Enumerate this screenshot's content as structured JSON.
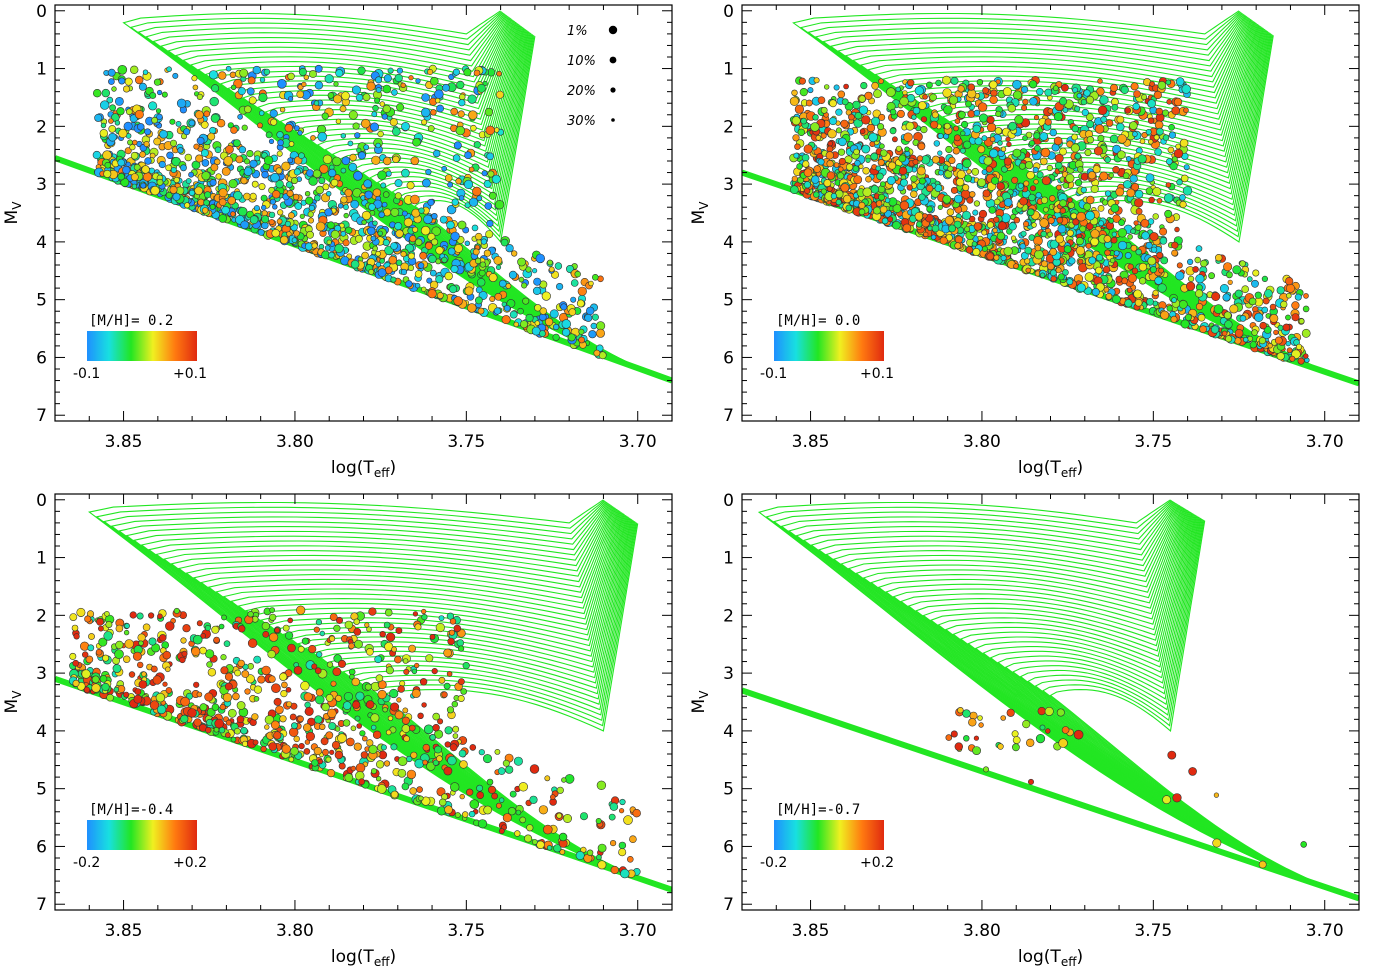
{
  "colors": {
    "isochrone": "#22e622",
    "frame": "#000000",
    "colormap": [
      "#1f8fff",
      "#18e0e0",
      "#22e622",
      "#f0f020",
      "#ff7a10",
      "#e02a10"
    ]
  },
  "chart_data": [
    {
      "type": "scatter",
      "title": "",
      "xlabel": "log(T",
      "xlabel_sub": "eff",
      "xlabel_close": ")",
      "ylabel": "M",
      "ylabel_sub": "V",
      "xlim": [
        3.87,
        3.69
      ],
      "ylim": [
        7.1,
        -0.1
      ],
      "xticks": [
        3.85,
        3.8,
        3.75,
        3.7
      ],
      "xtick_labels": [
        "3.85",
        "3.80",
        "3.75",
        "3.70"
      ],
      "yticks": [
        0,
        1,
        2,
        3,
        4,
        5,
        6,
        7
      ],
      "ytick_labels": [
        "0",
        "1",
        "2",
        "3",
        "4",
        "5",
        "6",
        "7"
      ],
      "metallicity_label": "[M/H]= 0.2",
      "colorbar": {
        "min_label": "-0.1",
        "max_label": "+0.1",
        "range": [
          -0.1,
          0.1
        ]
      },
      "size_legend": [
        {
          "label": "1%",
          "size": 4.2
        },
        {
          "label": "10%",
          "size": 3.4
        },
        {
          "label": "20%",
          "size": 2.6
        },
        {
          "label": "30%",
          "size": 1.8
        }
      ],
      "isochrones": {
        "zams_top": 2.55,
        "zams_bottom": 6.4,
        "ms_top_left": 0.0,
        "bend_x": 3.74,
        "rgb_top": 4.4,
        "count": 40,
        "hook_x": 3.85
      },
      "points": {
        "count": 1500,
        "seed": 11,
        "x_range": [
          3.858,
          3.71
        ],
        "upper_mv": [
          1.0,
          4.5
        ],
        "lower_mv": [
          3.0,
          6.15
        ],
        "xmax_upper": 3.74,
        "color_bias": -0.25
      }
    },
    {
      "type": "scatter",
      "title": "",
      "xlabel": "log(T",
      "xlabel_sub": "eff",
      "xlabel_close": ")",
      "ylabel": "M",
      "ylabel_sub": "V",
      "xlim": [
        3.87,
        3.69
      ],
      "ylim": [
        7.1,
        -0.1
      ],
      "xticks": [
        3.85,
        3.8,
        3.75,
        3.7
      ],
      "xtick_labels": [
        "3.85",
        "3.80",
        "3.75",
        "3.70"
      ],
      "yticks": [
        0,
        1,
        2,
        3,
        4,
        5,
        6,
        7
      ],
      "ytick_labels": [
        "0",
        "1",
        "2",
        "3",
        "4",
        "5",
        "6",
        "7"
      ],
      "metallicity_label": "[M/H]= 0.0",
      "colorbar": {
        "min_label": "-0.1",
        "max_label": "+0.1",
        "range": [
          -0.1,
          0.1
        ]
      },
      "size_legend": [],
      "isochrones": {
        "zams_top": 2.8,
        "zams_bottom": 6.45,
        "ms_top_left": 0.0,
        "bend_x": 3.725,
        "rgb_top": 4.25,
        "count": 40,
        "hook_x": 3.855
      },
      "points": {
        "count": 2200,
        "seed": 23,
        "x_range": [
          3.855,
          3.705
        ],
        "upper_mv": [
          1.2,
          4.4
        ],
        "lower_mv": [
          2.9,
          6.25
        ],
        "xmax_upper": 3.74,
        "color_bias": 0.1
      }
    },
    {
      "type": "scatter",
      "title": "",
      "xlabel": "log(T",
      "xlabel_sub": "eff",
      "xlabel_close": ")",
      "ylabel": "M",
      "ylabel_sub": "V",
      "xlim": [
        3.87,
        3.69
      ],
      "ylim": [
        7.1,
        -0.1
      ],
      "xticks": [
        3.85,
        3.8,
        3.75,
        3.7
      ],
      "xtick_labels": [
        "3.85",
        "3.80",
        "3.75",
        "3.70"
      ],
      "yticks": [
        0,
        1,
        2,
        3,
        4,
        5,
        6,
        7
      ],
      "ytick_labels": [
        "0",
        "1",
        "2",
        "3",
        "4",
        "5",
        "6",
        "7"
      ],
      "metallicity_label": "[M/H]=-0.4",
      "colorbar": {
        "min_label": "-0.2",
        "max_label": "+0.2",
        "range": [
          -0.2,
          0.2
        ]
      },
      "size_legend": [],
      "isochrones": {
        "zams_top": 3.1,
        "zams_bottom": 6.75,
        "ms_top_left": 0.0,
        "bend_x": 3.71,
        "rgb_top": 4.1,
        "count": 40,
        "hook_x": 3.86
      },
      "points": {
        "count": 900,
        "seed": 37,
        "x_range": [
          3.865,
          3.7
        ],
        "upper_mv": [
          1.9,
          4.6
        ],
        "lower_mv": [
          3.8,
          6.4
        ],
        "xmax_upper": 3.75,
        "color_bias": 0.35
      }
    },
    {
      "type": "scatter",
      "title": "",
      "xlabel": "log(T",
      "xlabel_sub": "eff",
      "xlabel_close": ")",
      "ylabel": "M",
      "ylabel_sub": "V",
      "xlim": [
        3.87,
        3.69
      ],
      "ylim": [
        7.1,
        -0.1
      ],
      "xticks": [
        3.85,
        3.8,
        3.75,
        3.7
      ],
      "xtick_labels": [
        "3.85",
        "3.80",
        "3.75",
        "3.70"
      ],
      "yticks": [
        0,
        1,
        2,
        3,
        4,
        5,
        6,
        7
      ],
      "ytick_labels": [
        "0",
        "1",
        "2",
        "3",
        "4",
        "5",
        "6",
        "7"
      ],
      "metallicity_label": "[M/H]=-0.7",
      "colorbar": {
        "min_label": "-0.2",
        "max_label": "+0.2",
        "range": [
          -0.2,
          0.2
        ]
      },
      "size_legend": [],
      "isochrones": {
        "zams_top": 3.3,
        "zams_bottom": 6.9,
        "ms_top_left": 0.0,
        "bend_x": 3.745,
        "rgb_top": 3.6,
        "count": 40,
        "hook_x": 3.865
      },
      "points": {
        "count": 45,
        "seed": 53,
        "x_range": [
          3.81,
          3.705
        ],
        "upper_mv": [
          3.6,
          4.3
        ],
        "lower_mv": [
          4.0,
          6.3
        ],
        "xmax_upper": 3.77,
        "color_bias": 0.5
      }
    }
  ]
}
